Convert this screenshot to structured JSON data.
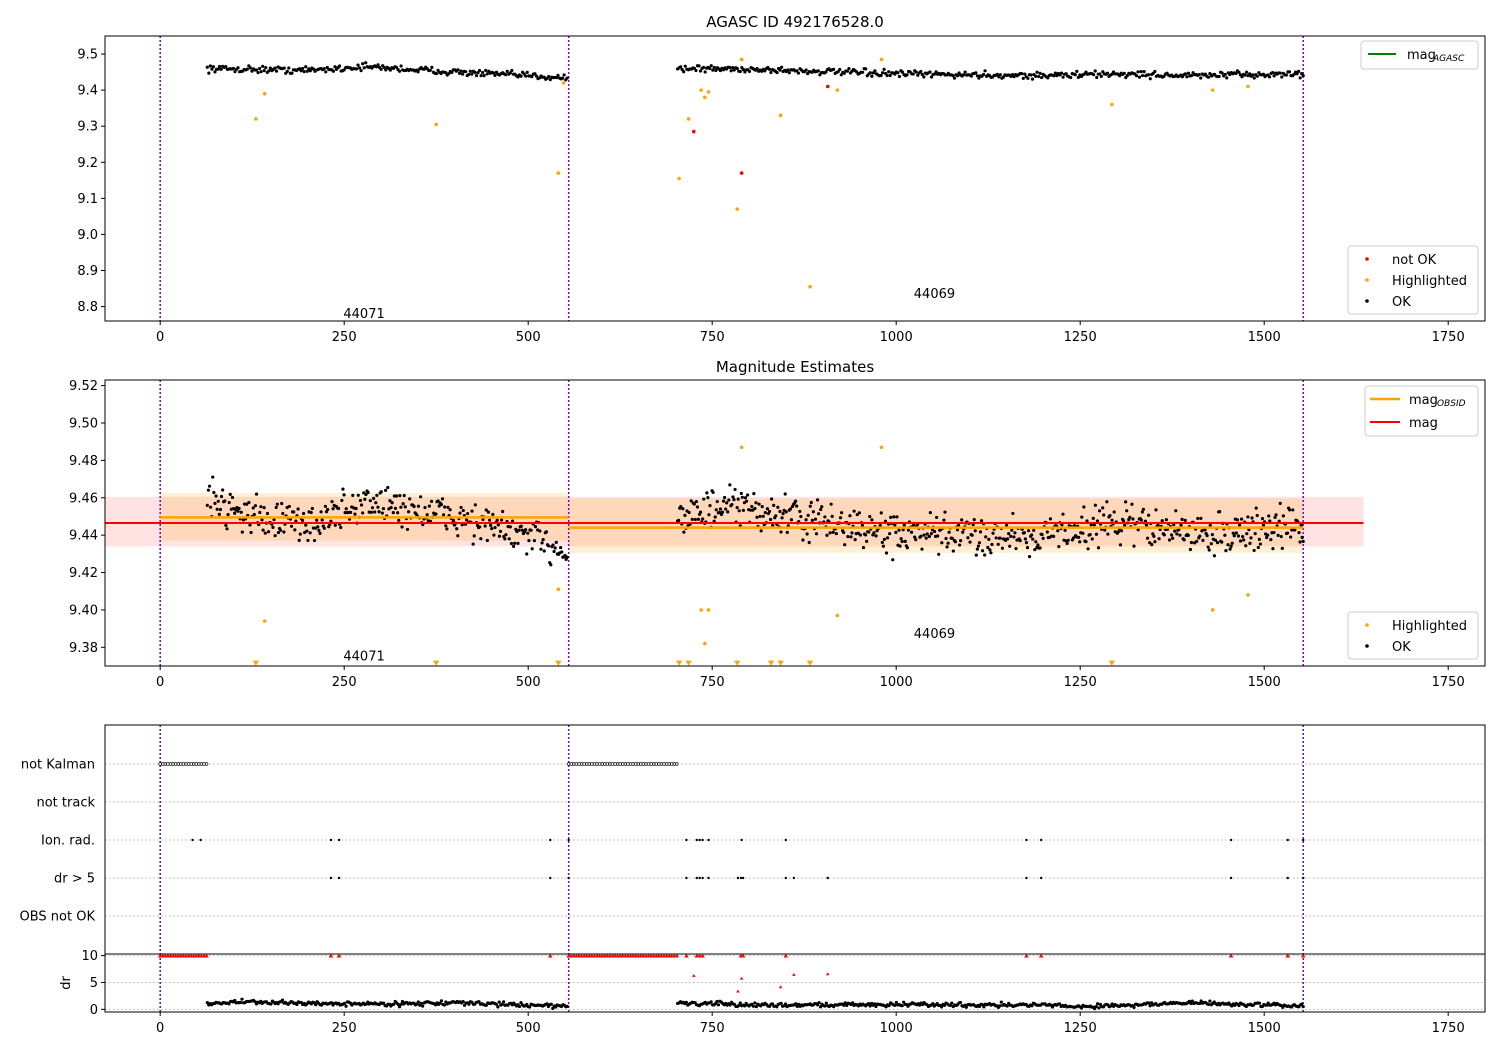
{
  "chart_data": [
    {
      "id": "p1",
      "type": "scatter",
      "title": "AGASC ID 492176528.0",
      "xlim": [
        -75,
        1800
      ],
      "ylim": [
        8.76,
        9.55
      ],
      "xticks": [
        0,
        250,
        500,
        750,
        1000,
        1250,
        1500,
        1750
      ],
      "yticks": [
        8.8,
        8.9,
        9.0,
        9.1,
        9.2,
        9.3,
        9.4,
        9.5
      ],
      "ytick_labels": [
        "8.8",
        "8.9",
        "9.0",
        "9.1",
        "9.2",
        "9.3",
        "9.4",
        "9.5"
      ],
      "vlines": [
        0,
        555,
        1553
      ],
      "obsid_labels": [
        {
          "x": 277,
          "y": 8.78,
          "text": "44071"
        },
        {
          "x": 1052,
          "y": 8.835,
          "text": "44069"
        }
      ],
      "legend_top": {
        "position": "upper right",
        "entries": [
          {
            "label": "mag",
            "sub": "AGASC",
            "color": "#008000"
          }
        ]
      },
      "legend_bottom": {
        "position": "lower right",
        "entries": [
          {
            "label": "not OK",
            "color": "#ff0000"
          },
          {
            "label": "Highlighted",
            "color": "#ffa500"
          },
          {
            "label": "OK",
            "color": "#000000"
          }
        ]
      },
      "series": [
        {
          "name": "OK",
          "color": "#000000",
          "segments": [
            {
              "x_start": 64,
              "x_end": 553,
              "n": 235,
              "anchors": [
                [
                  64,
                  9.46
                ],
                [
                  200,
                  9.455
                ],
                [
                  280,
                  9.465
                ],
                [
                  420,
                  9.448
                ],
                [
                  553,
                  9.435
                ]
              ],
              "noise": 0.008
            },
            {
              "x_start": 703,
              "x_end": 1553,
              "n": 410,
              "anchors": [
                [
                  703,
                  9.46
                ],
                [
                  800,
                  9.458
                ],
                [
                  1000,
                  9.445
                ],
                [
                  1200,
                  9.44
                ],
                [
                  1300,
                  9.445
                ],
                [
                  1400,
                  9.44
                ],
                [
                  1553,
                  9.445
                ]
              ],
              "noise": 0.008
            }
          ]
        },
        {
          "name": "Highlighted",
          "color": "#ffa500",
          "x": [
            130,
            142,
            375,
            541,
            548,
            705,
            718,
            735,
            740,
            745,
            784,
            790,
            843,
            883,
            920,
            980,
            1293,
            1430,
            1478
          ],
          "y": [
            9.32,
            9.39,
            9.305,
            9.17,
            9.42,
            9.155,
            9.32,
            9.4,
            9.38,
            9.395,
            9.07,
            9.485,
            9.33,
            8.855,
            9.4,
            9.485,
            9.36,
            9.4,
            9.41
          ]
        },
        {
          "name": "not OK",
          "color": "#ff0000",
          "x": [
            725,
            790,
            907
          ],
          "y": [
            9.285,
            9.17,
            9.41
          ]
        }
      ]
    },
    {
      "id": "p2",
      "type": "scatter",
      "title": "Magnitude Estimates",
      "xlim": [
        -75,
        1800
      ],
      "ylim": [
        9.37,
        9.523
      ],
      "xticks": [
        0,
        250,
        500,
        750,
        1000,
        1250,
        1500,
        1750
      ],
      "yticks": [
        9.38,
        9.4,
        9.42,
        9.44,
        9.46,
        9.48,
        9.5,
        9.52
      ],
      "ytick_labels": [
        "9.38",
        "9.40",
        "9.42",
        "9.44",
        "9.46",
        "9.48",
        "9.50",
        "9.52"
      ],
      "vlines": [
        0,
        555,
        1553
      ],
      "obsid_labels": [
        {
          "x": 277,
          "y": 9.375,
          "text": "44071"
        },
        {
          "x": 1052,
          "y": 9.387,
          "text": "44069"
        }
      ],
      "mag_line": {
        "y": 9.4465,
        "band": [
          9.434,
          9.4605
        ],
        "x": [
          -75,
          1635
        ],
        "color": "#ff0000"
      },
      "obsid_lines": [
        {
          "x": [
            0,
            555
          ],
          "y": 9.4495,
          "band": [
            9.437,
            9.4625
          ]
        },
        {
          "x": [
            555,
            1553
          ],
          "y": 9.444,
          "band": [
            9.4305,
            9.4595
          ]
        }
      ],
      "legend_top": {
        "position": "upper right",
        "entries": [
          {
            "label": "mag",
            "sub": "OBSID",
            "color": "#ffa500"
          },
          {
            "label": "mag",
            "color": "#ff0000"
          }
        ]
      },
      "legend_bottom": {
        "position": "lower right",
        "entries": [
          {
            "label": "Highlighted",
            "color": "#ffa500"
          },
          {
            "label": "OK",
            "color": "#000000"
          }
        ]
      },
      "series": [
        {
          "name": "OK",
          "color": "#000000",
          "segments": [
            {
              "x_start": 64,
              "x_end": 553,
              "n": 330,
              "anchors": [
                [
                  64,
                  9.46
                ],
                [
                  130,
                  9.45
                ],
                [
                  200,
                  9.445
                ],
                [
                  280,
                  9.458
                ],
                [
                  420,
                  9.448
                ],
                [
                  553,
                  9.432
                ]
              ],
              "noise": 0.009
            },
            {
              "x_start": 703,
              "x_end": 1553,
              "n": 600,
              "anchors": [
                [
                  703,
                  9.45
                ],
                [
                  780,
                  9.455
                ],
                [
                  850,
                  9.45
                ],
                [
                  1000,
                  9.44
                ],
                [
                  1200,
                  9.44
                ],
                [
                  1300,
                  9.447
                ],
                [
                  1420,
                  9.44
                ],
                [
                  1553,
                  9.445
                ]
              ],
              "noise": 0.009
            }
          ]
        },
        {
          "name": "Highlighted",
          "color": "#ffa500",
          "x": [
            142,
            541,
            735,
            740,
            745,
            790,
            920,
            980,
            1430,
            1478
          ],
          "y": [
            9.394,
            9.411,
            9.4,
            9.382,
            9.4,
            9.487,
            9.397,
            9.487,
            9.4,
            9.408
          ]
        },
        {
          "name": "Highlighted below range",
          "color": "#ffa500",
          "marker": "triangle-down",
          "x": [
            130,
            375,
            541,
            705,
            718,
            784,
            830,
            843,
            883,
            1293
          ],
          "y_at": 9.3715
        }
      ]
    },
    {
      "id": "p3",
      "type": "scatter",
      "xlim": [
        -75,
        1800
      ],
      "categories": [
        "not Kalman",
        "not track",
        "Ion. rad.",
        "dr > 5",
        "OBS not OK"
      ],
      "flags": {
        "not Kalman": {
          "ranges": [
            [
              0,
              64
            ],
            [
              555,
              703
            ]
          ],
          "step": 3.5
        },
        "not track": [],
        "Ion. rad.": [
          44,
          55,
          232,
          243,
          530,
          555,
          715,
          729,
          733,
          737,
          745,
          790,
          850,
          1177,
          1197,
          1455,
          1532,
          1553
        ],
        "dr > 5": [
          232,
          243,
          530,
          555,
          715,
          729,
          733,
          737,
          745,
          785,
          789,
          792,
          850,
          861,
          907,
          1177,
          1197,
          1455,
          1532,
          1553
        ],
        "OBS not OK": []
      },
      "vlines": [
        0,
        555,
        1553
      ]
    },
    {
      "id": "p4",
      "type": "scatter",
      "ylabel": "dr",
      "xlim": [
        -75,
        1800
      ],
      "ylim": [
        -0.5,
        10.3
      ],
      "xticks": [
        0,
        250,
        500,
        750,
        1000,
        1250,
        1500,
        1750
      ],
      "yticks": [
        0,
        5,
        10
      ],
      "vlines": [
        0,
        555,
        1553
      ],
      "series": [
        {
          "name": "dr",
          "color": "#000000",
          "segments": [
            {
              "x_start": 64,
              "x_end": 553,
              "n": 250,
              "anchors": [
                [
                  64,
                  1.0
                ],
                [
                  100,
                  1.4
                ],
                [
                  200,
                  1.1
                ],
                [
                  300,
                  1.0
                ],
                [
                  400,
                  1.2
                ],
                [
                  553,
                  0.6
                ]
              ],
              "noise": 0.35
            },
            {
              "x_start": 703,
              "x_end": 1553,
              "n": 430,
              "anchors": [
                [
                  703,
                  1.2
                ],
                [
                  800,
                  0.8
                ],
                [
                  1000,
                  0.9
                ],
                [
                  1200,
                  0.8
                ],
                [
                  1250,
                  0.5
                ],
                [
                  1400,
                  1.2
                ],
                [
                  1553,
                  0.6
                ]
              ],
              "noise": 0.35
            }
          ]
        },
        {
          "name": "dr > 5 (clipped)",
          "color": "#ff0000",
          "marker": "triangle-up",
          "ranges": [
            [
              0,
              64
            ],
            [
              555,
              703
            ]
          ],
          "step": 3.5,
          "x": [
            232,
            243,
            530,
            715,
            729,
            733,
            737,
            789,
            792,
            850,
            1177,
            1197,
            1455,
            1532,
            1553
          ],
          "y_at": 10
        },
        {
          "name": "dr outliers",
          "color": "#ff0000",
          "marker": "triangle-up",
          "x": [
            725,
            785,
            790,
            843,
            861,
            907
          ],
          "y": [
            6.3,
            3.4,
            5.8,
            4.2,
            6.5,
            6.6
          ]
        }
      ]
    }
  ]
}
